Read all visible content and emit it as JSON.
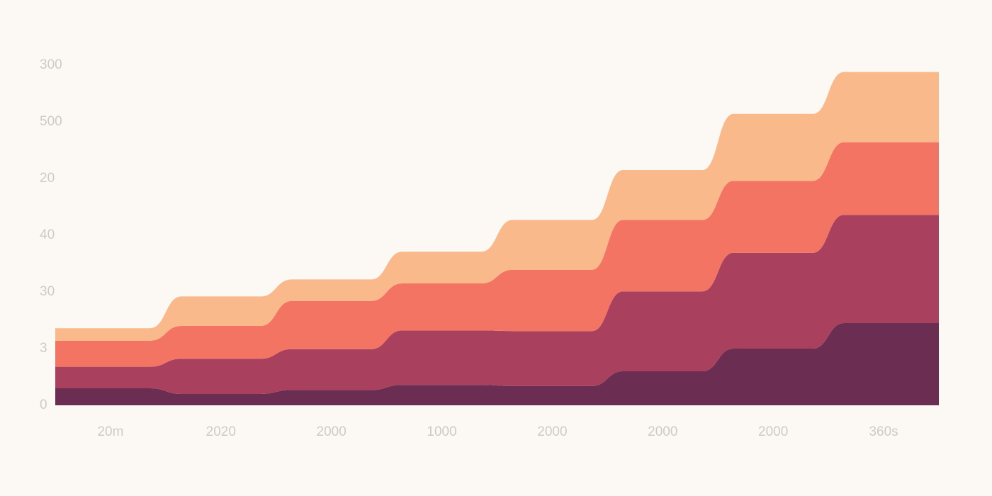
{
  "chart_data": {
    "type": "stacked-area",
    "categories": [
      "20m",
      "2020",
      "2000",
      "1000",
      "2000",
      "2000",
      "2000",
      "360s"
    ],
    "series": [
      {
        "color": "#6b2d52",
        "values": [
          30,
          20,
          27,
          36,
          34,
          60,
          100,
          145
        ]
      },
      {
        "color": "#a8405e",
        "values": [
          38,
          62,
          72,
          96,
          97,
          141,
          169,
          191
        ]
      },
      {
        "color": "#f47463",
        "values": [
          46,
          58,
          85,
          83,
          108,
          126,
          127,
          128
        ]
      },
      {
        "color": "#f9b98a",
        "values": [
          22,
          52,
          38,
          56,
          88,
          88,
          118,
          124
        ]
      }
    ],
    "ylim": [
      0,
      600
    ],
    "yticks": [
      0,
      {
        "value": 100,
        "label": "3"
      },
      {
        "value": 200,
        "label": "30"
      },
      {
        "value": 300,
        "label": "40"
      },
      {
        "value": 400,
        "label": "20"
      },
      500,
      {
        "value": 600,
        "label": "300"
      }
    ],
    "grid": false
  }
}
